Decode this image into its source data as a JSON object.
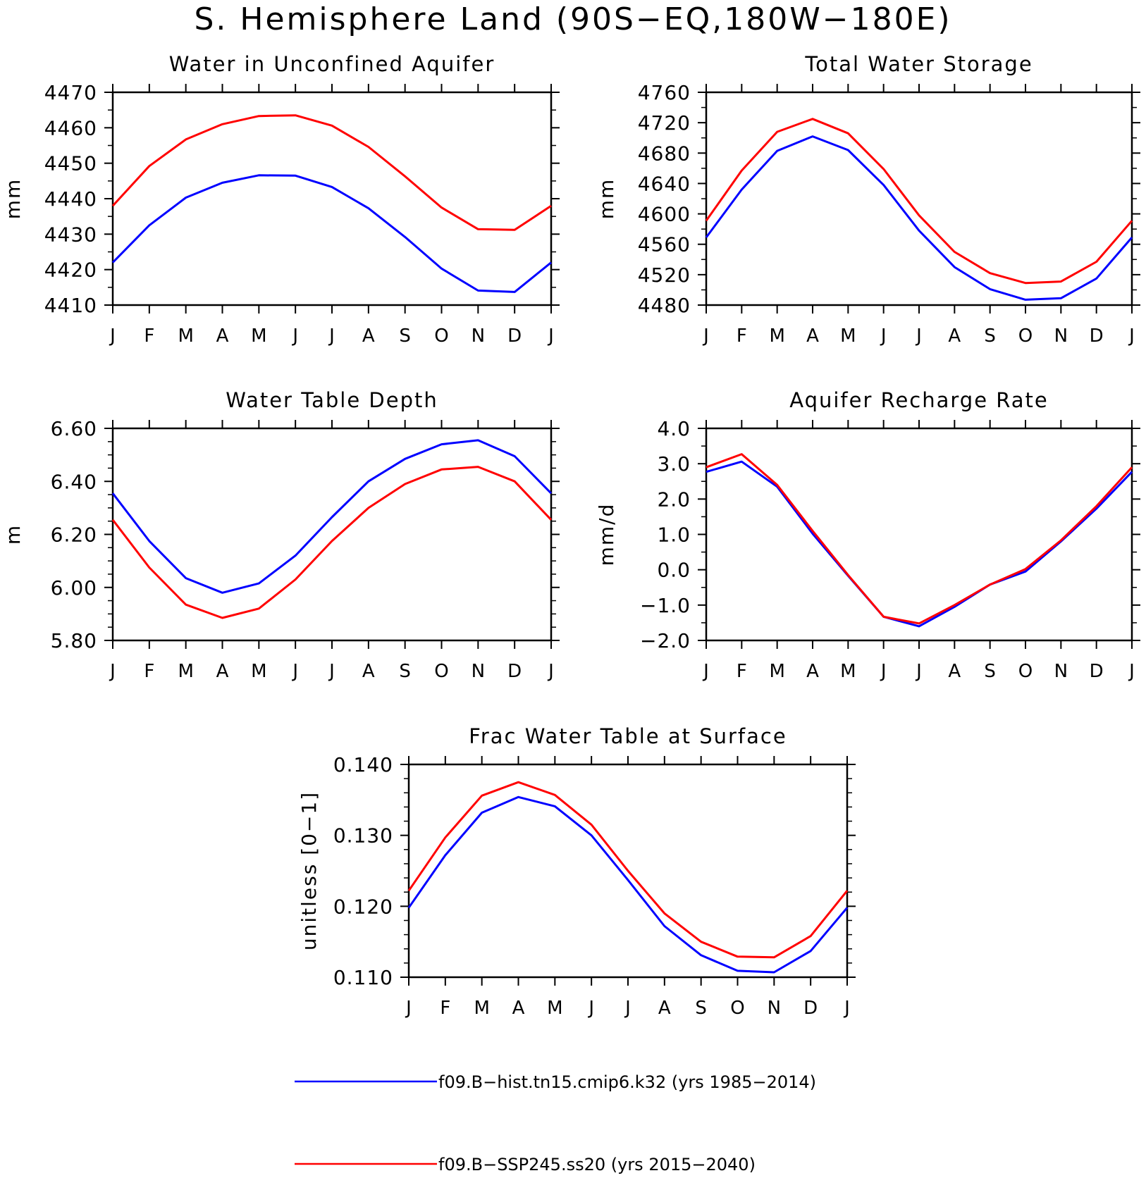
{
  "figure_title": "S. Hemisphere Land (90S−EQ,180W−180E)",
  "legend": [
    {
      "label": "f09.B−hist.tn15.cmip6.k32 (yrs 1985−2014)",
      "color": "#0000ff"
    },
    {
      "label": "f09.B−SSP245.ss20 (yrs 2015−2040)",
      "color": "#ff0000"
    }
  ],
  "chart_data": [
    {
      "type": "line",
      "title": "Water in Unconfined Aquifer",
      "ylabel": "mm",
      "categories": [
        "J",
        "F",
        "M",
        "A",
        "M",
        "J",
        "J",
        "A",
        "S",
        "O",
        "N",
        "D",
        "J"
      ],
      "ylim": [
        4410,
        4470
      ],
      "yticks": [
        "4410",
        "4420",
        "4430",
        "4440",
        "4450",
        "4460",
        "4470"
      ],
      "series": [
        {
          "name": "f09.B−hist.tn15.cmip6.k32 (yrs 1985−2014)",
          "color": "#0000ff",
          "values": [
            4422,
            4432.5,
            4440.3,
            4444.5,
            4446.6,
            4446.5,
            4443.3,
            4437.3,
            4429.2,
            4420.3,
            4414.1,
            4413.7,
            4422
          ]
        },
        {
          "name": "f09.B−SSP245.ss20 (yrs 2015−2040)",
          "color": "#ff0000",
          "values": [
            4438,
            4449.2,
            4456.7,
            4461,
            4463.3,
            4463.5,
            4460.6,
            4454.6,
            4446.3,
            4437.5,
            4431.4,
            4431.2,
            4438
          ]
        }
      ]
    },
    {
      "type": "line",
      "title": "Total Water Storage",
      "ylabel": "mm",
      "categories": [
        "J",
        "F",
        "M",
        "A",
        "M",
        "J",
        "J",
        "A",
        "S",
        "O",
        "N",
        "D",
        "J"
      ],
      "ylim": [
        4480,
        4760
      ],
      "yticks": [
        "4480",
        "4520",
        "4560",
        "4600",
        "4640",
        "4680",
        "4720",
        "4760"
      ],
      "series": [
        {
          "name": "f09.B−hist.tn15.cmip6.k32 (yrs 1985−2014)",
          "color": "#0000ff",
          "values": [
            4569,
            4632,
            4683,
            4702,
            4684,
            4638,
            4578,
            4530,
            4501,
            4487,
            4489,
            4515,
            4569
          ]
        },
        {
          "name": "f09.B−SSP245.ss20 (yrs 2015−2040)",
          "color": "#ff0000",
          "values": [
            4591,
            4657,
            4708,
            4725,
            4706,
            4659,
            4598,
            4550,
            4522,
            4509,
            4511,
            4537,
            4591
          ]
        }
      ]
    },
    {
      "type": "line",
      "title": "Water Table Depth",
      "ylabel": "m",
      "categories": [
        "J",
        "F",
        "M",
        "A",
        "M",
        "J",
        "J",
        "A",
        "S",
        "O",
        "N",
        "D",
        "J"
      ],
      "ylim": [
        5.8,
        6.6
      ],
      "yticks": [
        "5.80",
        "6.00",
        "6.20",
        "6.40",
        "6.60"
      ],
      "series": [
        {
          "name": "f09.B−hist.tn15.cmip6.k32 (yrs 1985−2014)",
          "color": "#0000ff",
          "values": [
            6.355,
            6.175,
            6.035,
            5.98,
            6.015,
            6.12,
            6.265,
            6.4,
            6.485,
            6.54,
            6.555,
            6.495,
            6.355
          ]
        },
        {
          "name": "f09.B−SSP245.ss20 (yrs 2015−2040)",
          "color": "#ff0000",
          "values": [
            6.255,
            6.075,
            5.935,
            5.885,
            5.92,
            6.03,
            6.175,
            6.3,
            6.39,
            6.445,
            6.455,
            6.4,
            6.255
          ]
        }
      ]
    },
    {
      "type": "line",
      "title": "Aquifer Recharge Rate",
      "ylabel": "mm/d",
      "categories": [
        "J",
        "F",
        "M",
        "A",
        "M",
        "J",
        "J",
        "A",
        "S",
        "O",
        "N",
        "D",
        "J"
      ],
      "ylim": [
        -2.0,
        4.0
      ],
      "yticks": [
        "−2.0",
        "−1.0",
        "0.0",
        "1.0",
        "2.0",
        "3.0",
        "4.0"
      ],
      "series": [
        {
          "name": "f09.B−hist.tn15.cmip6.k32 (yrs 1985−2014)",
          "color": "#0000ff",
          "values": [
            2.77,
            3.06,
            2.35,
            1.02,
            -0.17,
            -1.33,
            -1.6,
            -1.05,
            -0.42,
            -0.05,
            0.8,
            1.73,
            2.77
          ]
        },
        {
          "name": "f09.B−SSP245.ss20 (yrs 2015−2040)",
          "color": "#ff0000",
          "values": [
            2.9,
            3.27,
            2.4,
            1.1,
            -0.15,
            -1.33,
            -1.52,
            -1.0,
            -0.42,
            0.02,
            0.83,
            1.8,
            2.9
          ]
        }
      ]
    },
    {
      "type": "line",
      "title": "Frac Water Table at Surface",
      "ylabel": "unitless [0−1]",
      "categories": [
        "J",
        "F",
        "M",
        "A",
        "M",
        "J",
        "J",
        "A",
        "S",
        "O",
        "N",
        "D",
        "J"
      ],
      "ylim": [
        0.11,
        0.14
      ],
      "yticks": [
        "0.110",
        "0.120",
        "0.130",
        "0.140"
      ],
      "series": [
        {
          "name": "f09.B−hist.tn15.cmip6.k32 (yrs 1985−2014)",
          "color": "#0000ff",
          "values": [
            0.1198,
            0.1272,
            0.1332,
            0.1354,
            0.1341,
            0.13,
            0.1237,
            0.1172,
            0.1131,
            0.1109,
            0.1107,
            0.1137,
            0.1198
          ]
        },
        {
          "name": "f09.B−SSP245.ss20 (yrs 2015−2040)",
          "color": "#ff0000",
          "values": [
            0.1222,
            0.1297,
            0.1356,
            0.1375,
            0.1357,
            0.1315,
            0.125,
            0.119,
            0.115,
            0.1129,
            0.1128,
            0.1158,
            0.1222
          ]
        }
      ]
    }
  ]
}
